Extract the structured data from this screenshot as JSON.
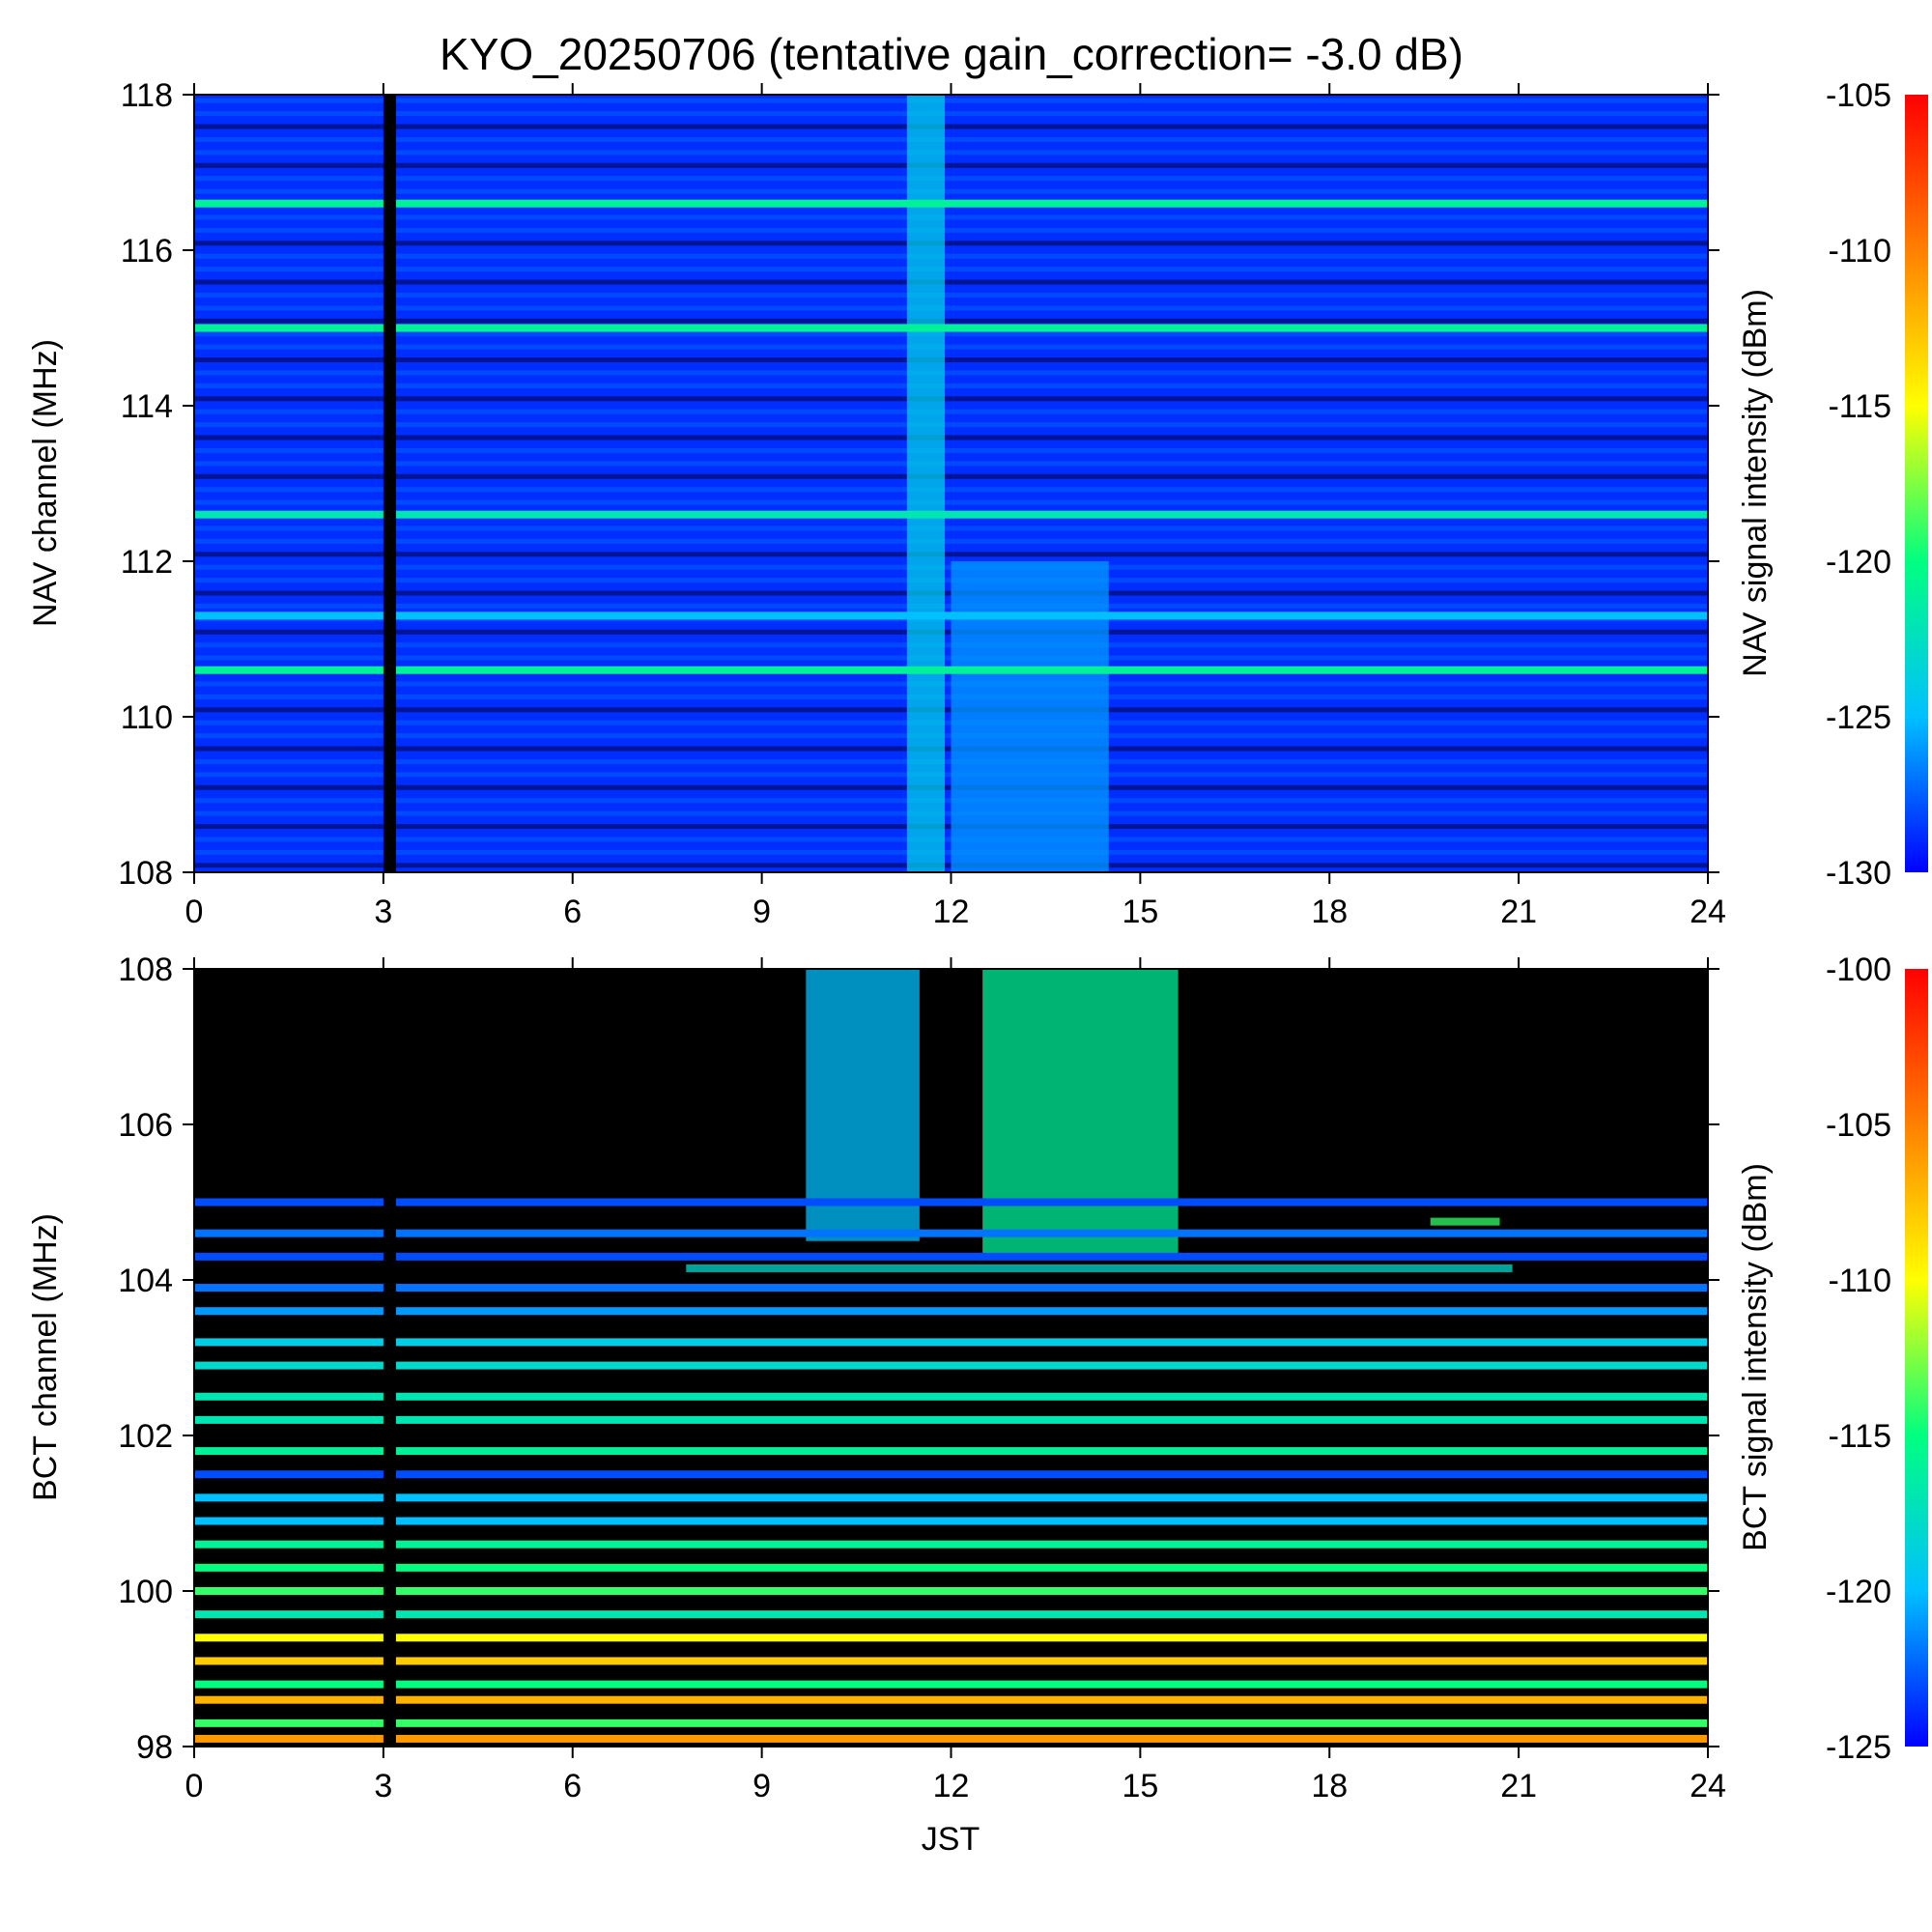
{
  "chart_data": [
    {
      "type": "heatmap",
      "title": "KYO_20250706 (tentative gain_correction= -3.0 dB)",
      "ylabel": "NAV channel (MHz)",
      "colorbar_label": "NAV signal intensity (dBm)",
      "xlim": [
        0,
        24
      ],
      "ylim": [
        108,
        118
      ],
      "x_ticks": [
        "0",
        "3",
        "6",
        "9",
        "12",
        "15",
        "18",
        "21",
        "24"
      ],
      "y_ticks": [
        "108",
        "110",
        "112",
        "114",
        "116",
        "118"
      ],
      "colorbar_range": [
        -130,
        -105
      ],
      "colorbar_ticks": [
        "-130",
        "-125",
        "-120",
        "-115",
        "-110",
        "-105"
      ],
      "colormap": [
        "#0000ff",
        "#00c0ff",
        "#00ff80",
        "#ffff00",
        "#ff8000",
        "#ff0000"
      ],
      "data_gap_hours": [
        3.0,
        3.2
      ],
      "persistent_lines": [
        {
          "freq_mhz": 116.6,
          "intensity_dbm": -121
        },
        {
          "freq_mhz": 115.0,
          "intensity_dbm": -121
        },
        {
          "freq_mhz": 112.6,
          "intensity_dbm": -122
        },
        {
          "freq_mhz": 111.3,
          "intensity_dbm": -125
        },
        {
          "freq_mhz": 110.6,
          "intensity_dbm": -121
        }
      ],
      "activity_windows": [
        {
          "start_h": 11.3,
          "end_h": 11.9,
          "fmin": 108,
          "fmax": 118,
          "intensity_dbm": -124
        },
        {
          "start_h": 12.0,
          "end_h": 14.5,
          "fmin": 108,
          "fmax": 112,
          "intensity_dbm": -126
        }
      ]
    },
    {
      "type": "heatmap",
      "xlabel": "JST",
      "ylabel": "BCT channel (MHz)",
      "colorbar_label": "BCT signal intensity (dBm)",
      "xlim": [
        0,
        24
      ],
      "ylim": [
        98,
        108
      ],
      "x_ticks": [
        "0",
        "3",
        "6",
        "9",
        "12",
        "15",
        "18",
        "21",
        "24"
      ],
      "y_ticks": [
        "98",
        "100",
        "102",
        "104",
        "106",
        "108"
      ],
      "colorbar_range": [
        -125,
        -100
      ],
      "colorbar_ticks": [
        "-125",
        "-120",
        "-115",
        "-110",
        "-105",
        "-100"
      ],
      "colormap": [
        "#0000ff",
        "#00c0ff",
        "#00ff80",
        "#ffff00",
        "#ff8000",
        "#ff0000"
      ],
      "data_gap_hours": [
        3.0,
        3.2
      ],
      "persistent_lines": [
        {
          "freq_mhz": 105.0,
          "intensity_dbm": -123
        },
        {
          "freq_mhz": 104.6,
          "intensity_dbm": -122
        },
        {
          "freq_mhz": 104.3,
          "intensity_dbm": -123
        },
        {
          "freq_mhz": 103.9,
          "intensity_dbm": -122
        },
        {
          "freq_mhz": 103.6,
          "intensity_dbm": -121
        },
        {
          "freq_mhz": 103.2,
          "intensity_dbm": -119
        },
        {
          "freq_mhz": 102.9,
          "intensity_dbm": -118
        },
        {
          "freq_mhz": 102.5,
          "intensity_dbm": -117
        },
        {
          "freq_mhz": 102.2,
          "intensity_dbm": -117
        },
        {
          "freq_mhz": 101.8,
          "intensity_dbm": -116
        },
        {
          "freq_mhz": 101.5,
          "intensity_dbm": -123
        },
        {
          "freq_mhz": 101.2,
          "intensity_dbm": -120
        },
        {
          "freq_mhz": 100.9,
          "intensity_dbm": -120
        },
        {
          "freq_mhz": 100.6,
          "intensity_dbm": -116
        },
        {
          "freq_mhz": 100.3,
          "intensity_dbm": -115
        },
        {
          "freq_mhz": 100.0,
          "intensity_dbm": -114
        },
        {
          "freq_mhz": 99.7,
          "intensity_dbm": -117
        },
        {
          "freq_mhz": 99.4,
          "intensity_dbm": -110
        },
        {
          "freq_mhz": 99.1,
          "intensity_dbm": -108
        },
        {
          "freq_mhz": 98.8,
          "intensity_dbm": -115
        },
        {
          "freq_mhz": 98.6,
          "intensity_dbm": -107
        },
        {
          "freq_mhz": 98.3,
          "intensity_dbm": -114
        },
        {
          "freq_mhz": 98.1,
          "intensity_dbm": -106
        }
      ],
      "activity_windows": [
        {
          "start_h": 9.7,
          "end_h": 11.5,
          "fmin": 104.5,
          "fmax": 108,
          "intensity_dbm": -120
        },
        {
          "start_h": 12.5,
          "end_h": 15.6,
          "fmin": 104.3,
          "fmax": 108,
          "intensity_dbm": -116
        },
        {
          "start_h": 19.6,
          "end_h": 20.7,
          "fmin": 104.7,
          "fmax": 104.8,
          "intensity_dbm": -114
        },
        {
          "start_h": 7.8,
          "end_h": 20.9,
          "fmin": 104.1,
          "fmax": 104.2,
          "intensity_dbm": -118
        }
      ]
    }
  ]
}
